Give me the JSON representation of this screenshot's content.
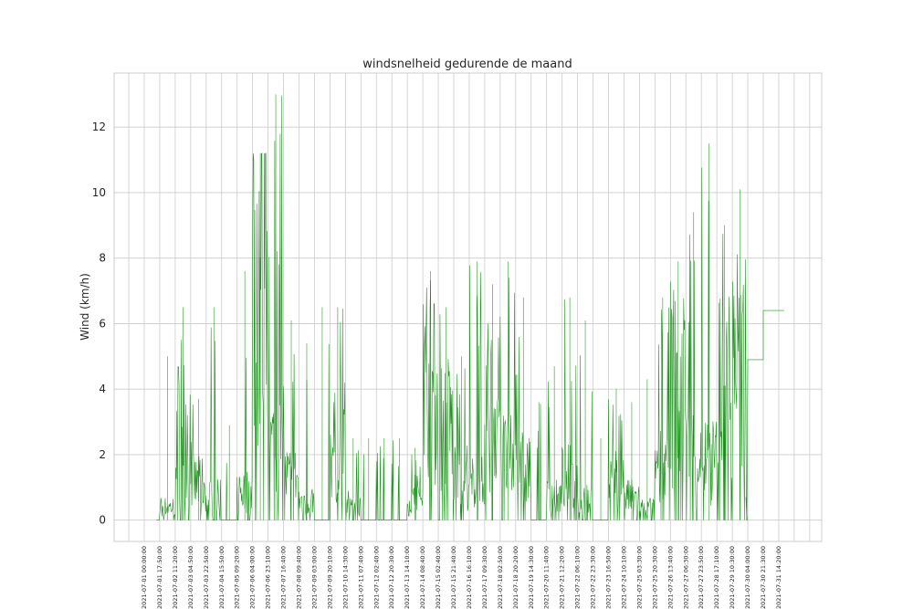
{
  "chart_data": {
    "type": "line",
    "title": "windsnelheid gedurende de maand",
    "xlabel": "",
    "ylabel": "Wind (km/h)",
    "ylim": [
      -0.65,
      13.65
    ],
    "yticks": [
      0,
      2,
      4,
      6,
      8,
      10,
      12
    ],
    "grid": true,
    "line_color": "#008000",
    "x": [
      "2021-07-01 00:00:00",
      "2021-07-01 17:50:00",
      "2021-07-02 11:20:00",
      "2021-07-03 04:50:00",
      "2021-07-03 22:50:00",
      "2021-07-04 15:50:00",
      "2021-07-05 09:20:00",
      "2021-07-06 04:00:00",
      "2021-07-06 23:10:00",
      "2021-07-07 16:40:00",
      "2021-07-08 09:40:00",
      "2021-07-09 03:00:00",
      "2021-07-09 20:10:00",
      "2021-07-10 14:30:00",
      "2021-07-11 07:40:00",
      "2021-07-12 02:40:00",
      "2021-07-12 20:30:00",
      "2021-07-13 14:10:00",
      "2021-07-14 08:40:00",
      "2021-07-15 02:40:00",
      "2021-07-15 21:40:00",
      "2021-07-16 16:10:00",
      "2021-07-17 09:30:00",
      "2021-07-18 02:50:00",
      "2021-07-18 20:20:00",
      "2021-07-19 14:30:00",
      "2021-07-20 11:40:00",
      "2021-07-21 12:20:00",
      "2021-07-22 06:10:00",
      "2021-07-22 23:30:00",
      "2021-07-23 16:50:00",
      "2021-07-24 10:10:00",
      "2021-07-25 03:30:00",
      "2021-07-25 20:30:00",
      "2021-07-26 13:40:00",
      "2021-07-27 06:30:00",
      "2021-07-27 23:50:00",
      "2021-07-28 17:10:00",
      "2021-07-29 10:30:00",
      "2021-07-30 04:00:00",
      "2021-07-30 21:30:00",
      "2021-07-31 14:20:00"
    ],
    "values": [
      0.0,
      0.4,
      2.9,
      1.1,
      0.7,
      0.0,
      0.9,
      8.0,
      2.2,
      1.3,
      0.6,
      0.0,
      2.2,
      0.5,
      0.0,
      0.0,
      0.0,
      0.6,
      3.8,
      2.9,
      1.4,
      1.1,
      3.4,
      1.8,
      1.6,
      0.0,
      0.7,
      1.3,
      0.7,
      0.0,
      1.2,
      0.7,
      0.4,
      1.7,
      4.1,
      2.0,
      1.8,
      4.0,
      5.1,
      4.9,
      6.4,
      6.4
    ],
    "peaks": [
      0.0,
      5.0,
      6.5,
      3.7,
      6.5,
      2.9,
      7.6,
      11.2,
      13.0,
      6.1,
      5.4,
      6.5,
      6.5,
      2.5,
      2.5,
      2.5,
      2.5,
      2.2,
      7.6,
      6.5,
      5.0,
      7.9,
      7.2,
      7.9,
      6.8,
      3.6,
      4.7,
      6.8,
      6.1,
      2.5,
      4.0,
      3.6,
      4.3,
      6.8,
      7.9,
      9.4,
      11.5,
      9.0,
      10.1,
      4.9,
      6.4,
      6.4
    ]
  }
}
